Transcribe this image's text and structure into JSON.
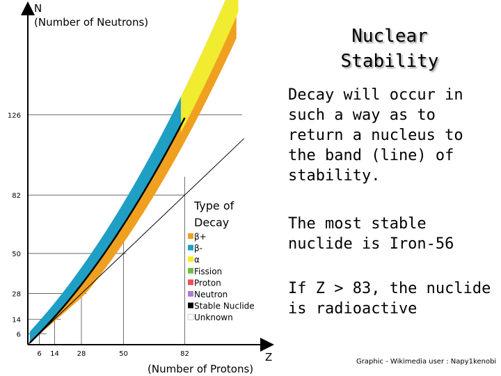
{
  "title": {
    "line1": "Nuclear",
    "line2": "Stability"
  },
  "paragraphs": [
    "Decay will occur in such a way as to return a nucleus to the band (line) of stability.",
    "The most stable nuclide is Iron-56",
    "If Z > 83, the nuclide is radioactive"
  ],
  "credit": "Graphic - Wikimedia user : Napy1kenobi",
  "chart_data": {
    "type": "scatter",
    "y_axis": {
      "letter": "N",
      "label": "(Number of Neutrons)",
      "ticks": [
        6,
        14,
        28,
        50,
        82,
        126
      ]
    },
    "x_axis": {
      "letter": "Z",
      "label": "(Number of Protons)",
      "ticks": [
        6,
        14,
        28,
        50,
        82
      ]
    },
    "xlim": [
      0,
      118
    ],
    "ylim": [
      0,
      177
    ],
    "reference_line": "N = Z",
    "legend": {
      "title_line1": "Type of",
      "title_line2": "Decay",
      "items": [
        {
          "label": "β+",
          "color": "#f0a020"
        },
        {
          "label": "β-",
          "color": "#1f9fc4"
        },
        {
          "label": "α",
          "color": "#f2ec30"
        },
        {
          "label": "Fission",
          "color": "#6cc040"
        },
        {
          "label": "Proton",
          "color": "#ef4f5a"
        },
        {
          "label": "Neutron",
          "color": "#b07ad4"
        },
        {
          "label": "Stable Nuclide",
          "color": "#000000"
        },
        {
          "label": "Unknown",
          "color": "#ffffff"
        }
      ]
    }
  }
}
